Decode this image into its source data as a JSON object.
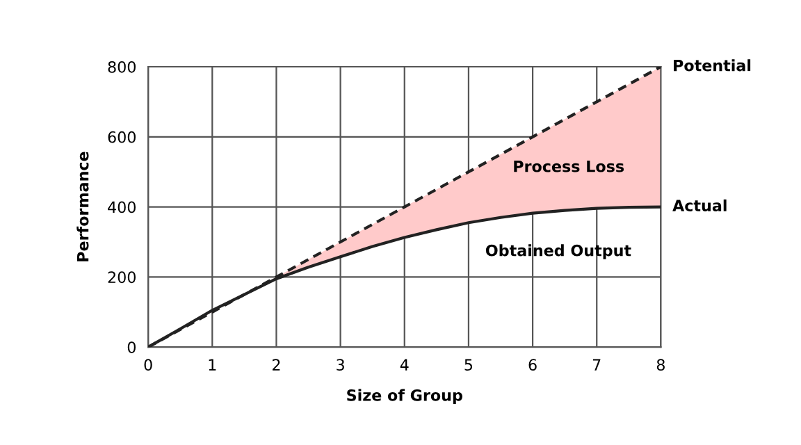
{
  "chart_data": {
    "type": "line",
    "xlabel": "Size of Group",
    "ylabel": "Performance",
    "series": [
      {
        "name": "Potential",
        "color": "#222222",
        "line_style": "dashed",
        "x": [
          0,
          0.5,
          1,
          1.5,
          2,
          2.5,
          3,
          3.5,
          4,
          4.5,
          5,
          5.5,
          6,
          6.5,
          7,
          7.5,
          8
        ],
        "values": [
          0,
          50,
          100,
          150,
          200,
          250,
          300,
          350,
          400,
          450,
          500,
          550,
          600,
          650,
          700,
          750,
          800
        ],
        "lower": [
          0,
          52,
          105,
          150,
          195,
          228,
          258,
          287,
          313,
          335,
          355,
          370,
          382,
          390,
          396,
          399,
          400
        ],
        "upper": [
          0,
          50,
          100,
          150,
          200,
          250,
          300,
          350,
          400,
          450,
          500,
          550,
          600,
          650,
          700,
          750,
          800
        ],
        "colors": [
          "#ffcaca",
          "#ffcaca",
          "#ffcaca",
          "#ffcaca",
          "#ffcaca",
          "#ffcaca",
          "#ffcaca",
          "#ffcaca",
          "#ffcaca",
          "#ffcaca",
          "#ffcaca",
          "#ffcaca",
          "#ffcaca",
          "#ffcaca",
          "#ffcaca",
          "#ffcaca",
          "#ffcaca"
        ]
      },
      {
        "name": "Actual",
        "color": "#222222",
        "line_style": "solid",
        "x": [
          0,
          0.5,
          1,
          1.5,
          2,
          2.5,
          3,
          3.5,
          4,
          4.5,
          5,
          5.5,
          6,
          6.5,
          7,
          7.5,
          8
        ],
        "values": [
          0,
          52,
          105,
          150,
          195,
          228,
          258,
          287,
          313,
          335,
          355,
          370,
          382,
          390,
          396,
          399,
          400
        ]
      }
    ],
    "annotations": [
      "Process Loss",
      "Obtained Output"
    ],
    "xlim": [
      0,
      8
    ],
    "ylim": [
      0,
      800
    ],
    "xticks": [
      0,
      1,
      2,
      3,
      4,
      5,
      6,
      7,
      8
    ],
    "yticks": [
      0,
      200,
      400,
      600,
      800
    ],
    "grid": true,
    "legend": false,
    "marker": "none"
  }
}
